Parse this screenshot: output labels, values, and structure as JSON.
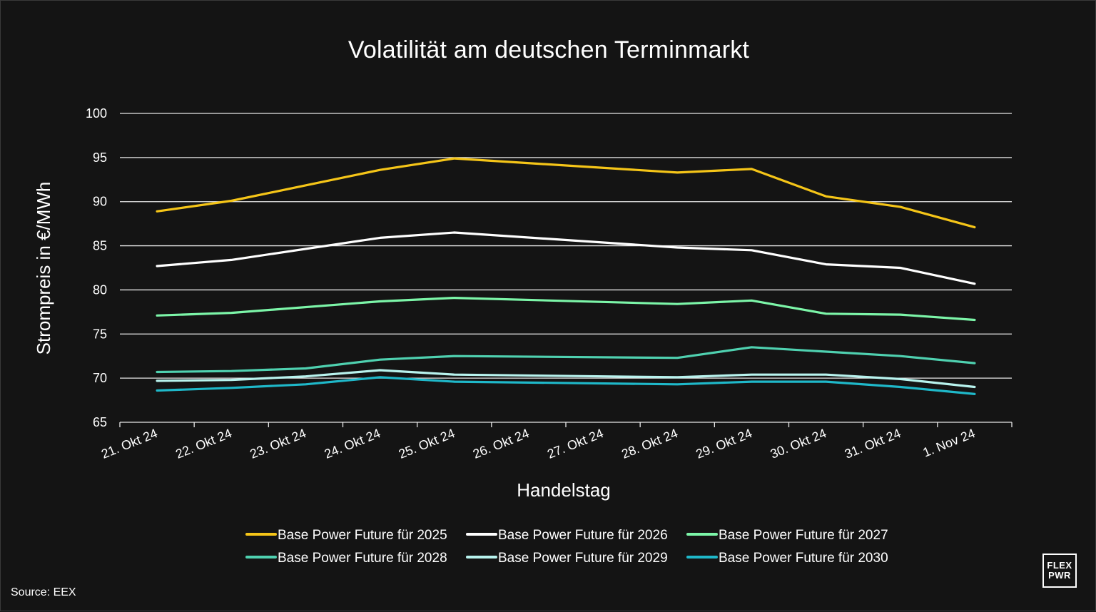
{
  "source_label": "Source: EEX",
  "logo": {
    "line1": "FLEX",
    "line2": "PWR"
  },
  "chart_data": {
    "type": "line",
    "title": "Volatilität am deutschen Terminmarkt",
    "xlabel": "Handelstag",
    "ylabel": "Strompreis in €/MWh",
    "ylim": [
      65,
      100
    ],
    "yticks": [
      65,
      70,
      75,
      80,
      85,
      90,
      95,
      100
    ],
    "grid": true,
    "legend_position": "bottom",
    "categories": [
      "21. Okt 24",
      "22. Okt 24",
      "23. Okt 24",
      "24. Okt 24",
      "25. Okt 24",
      "26. Okt 24",
      "27. Okt 24",
      "28. Okt 24",
      "29. Okt 24",
      "30. Okt 24",
      "31. Okt 24",
      "1. Nov 24"
    ],
    "series": [
      {
        "name": "Base Power Future für 2025",
        "color": "#f5c518",
        "x": [
          "21. Okt 24",
          "22. Okt 24",
          "24. Okt 24",
          "25. Okt 24",
          "28. Okt 24",
          "29. Okt 24",
          "30. Okt 24",
          "31. Okt 24",
          "1. Nov 24"
        ],
        "values": [
          88.9,
          90.1,
          93.6,
          94.9,
          93.3,
          93.7,
          90.6,
          89.4,
          87.1
        ]
      },
      {
        "name": "Base Power Future für 2026",
        "color": "#ffffff",
        "x": [
          "21. Okt 24",
          "22. Okt 24",
          "24. Okt 24",
          "25. Okt 24",
          "28. Okt 24",
          "29. Okt 24",
          "30. Okt 24",
          "31. Okt 24",
          "1. Nov 24"
        ],
        "values": [
          82.7,
          83.4,
          85.9,
          86.5,
          84.8,
          84.5,
          82.9,
          82.5,
          80.7
        ]
      },
      {
        "name": "Base Power Future für 2027",
        "color": "#7cf5a8",
        "x": [
          "21. Okt 24",
          "22. Okt 24",
          "24. Okt 24",
          "25. Okt 24",
          "28. Okt 24",
          "29. Okt 24",
          "30. Okt 24",
          "31. Okt 24",
          "1. Nov 24"
        ],
        "values": [
          77.1,
          77.4,
          78.7,
          79.1,
          78.4,
          78.8,
          77.3,
          77.2,
          76.6
        ]
      },
      {
        "name": "Base Power Future für 2028",
        "color": "#4fd1b0",
        "x": [
          "21. Okt 24",
          "22. Okt 24",
          "23. Okt 24",
          "24. Okt 24",
          "25. Okt 24",
          "28. Okt 24",
          "29. Okt 24",
          "30. Okt 24",
          "31. Okt 24",
          "1. Nov 24"
        ],
        "values": [
          70.7,
          70.8,
          71.1,
          72.1,
          72.5,
          72.3,
          73.5,
          73.0,
          72.5,
          71.7
        ]
      },
      {
        "name": "Base Power Future für 2029",
        "color": "#b8f3ee",
        "x": [
          "21. Okt 24",
          "22. Okt 24",
          "23. Okt 24",
          "24. Okt 24",
          "25. Okt 24",
          "28. Okt 24",
          "29. Okt 24",
          "30. Okt 24",
          "31. Okt 24",
          "1. Nov 24"
        ],
        "values": [
          69.7,
          69.8,
          70.2,
          70.9,
          70.4,
          70.1,
          70.4,
          70.4,
          69.9,
          69.0
        ]
      },
      {
        "name": "Base Power Future für 2030",
        "color": "#1fb8c9",
        "x": [
          "21. Okt 24",
          "22. Okt 24",
          "23. Okt 24",
          "24. Okt 24",
          "25. Okt 24",
          "28. Okt 24",
          "29. Okt 24",
          "30. Okt 24",
          "31. Okt 24",
          "1. Nov 24"
        ],
        "values": [
          68.6,
          68.9,
          69.3,
          70.1,
          69.6,
          69.3,
          69.6,
          69.6,
          69.0,
          68.2
        ]
      }
    ]
  }
}
